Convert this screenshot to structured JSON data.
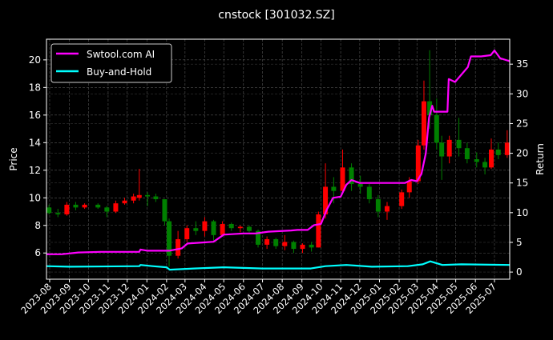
{
  "chart_data": {
    "type": "line",
    "title": "cnstock [301032.SZ]",
    "ylabel": "Price",
    "y2label": "Return",
    "ylim": [
      4.1,
      21.5
    ],
    "y2lim": [
      -1.2,
      39.2
    ],
    "xlim": [
      "2023-07-27",
      "2025-07-25"
    ],
    "yticks": [
      6,
      8,
      10,
      12,
      14,
      16,
      18,
      20
    ],
    "y2ticks": [
      0,
      5,
      10,
      15,
      20,
      25,
      30,
      35
    ],
    "xticks": [
      "2023-08",
      "2023-09",
      "2023-10",
      "2023-11",
      "2023-12",
      "2024-01",
      "2024-02",
      "2024-03",
      "2024-04",
      "2024-05",
      "2024-06",
      "2024-07",
      "2024-08",
      "2024-09",
      "2024-10",
      "2024-11",
      "2024-12",
      "2025-01",
      "2025-02",
      "2025-03",
      "2025-04",
      "2025-05",
      "2025-06",
      "2025-07"
    ],
    "grid": true,
    "legend_position": "top-left",
    "colors": {
      "up": "#ff0000",
      "down": "#008000",
      "ai": "#ff00ff",
      "hold": "#00ffff"
    },
    "candles_columns": [
      "date",
      "open",
      "high",
      "low",
      "close"
    ],
    "candles": [
      [
        "2023-07-31",
        9.3,
        9.5,
        8.8,
        8.9
      ],
      [
        "2023-08-14",
        8.9,
        9.2,
        8.6,
        8.8
      ],
      [
        "2023-08-28",
        8.8,
        9.7,
        8.7,
        9.5
      ],
      [
        "2023-09-11",
        9.5,
        9.7,
        9.1,
        9.3
      ],
      [
        "2023-09-25",
        9.3,
        9.6,
        9.2,
        9.5
      ],
      [
        "2023-10-16",
        9.5,
        9.6,
        9.2,
        9.3
      ],
      [
        "2023-10-30",
        9.3,
        9.4,
        8.6,
        9.0
      ],
      [
        "2023-11-13",
        9.0,
        9.8,
        8.9,
        9.6
      ],
      [
        "2023-11-27",
        9.6,
        10.0,
        9.5,
        9.8
      ],
      [
        "2023-12-11",
        9.8,
        10.3,
        9.6,
        10.1
      ],
      [
        "2023-12-20",
        10.0,
        12.1,
        9.8,
        10.2
      ],
      [
        "2024-01-02",
        10.2,
        10.4,
        9.4,
        10.1
      ],
      [
        "2024-01-15",
        10.1,
        10.3,
        9.7,
        9.9
      ],
      [
        "2024-01-29",
        9.9,
        9.9,
        8.0,
        8.3
      ],
      [
        "2024-02-05",
        8.3,
        8.5,
        5.0,
        5.8
      ],
      [
        "2024-02-19",
        5.8,
        7.6,
        5.6,
        7.0
      ],
      [
        "2024-03-04",
        7.0,
        8.0,
        6.8,
        7.8
      ],
      [
        "2024-03-18",
        7.8,
        8.3,
        7.3,
        7.6
      ],
      [
        "2024-04-01",
        7.6,
        8.6,
        7.2,
        8.3
      ],
      [
        "2024-04-15",
        8.3,
        8.4,
        6.8,
        7.3
      ],
      [
        "2024-04-29",
        7.3,
        8.3,
        7.2,
        8.1
      ],
      [
        "2024-05-13",
        8.1,
        8.2,
        7.6,
        7.8
      ],
      [
        "2024-05-27",
        7.8,
        8.0,
        7.5,
        7.9
      ],
      [
        "2024-06-10",
        7.9,
        8.0,
        7.5,
        7.6
      ],
      [
        "2024-06-24",
        7.6,
        7.7,
        6.4,
        6.6
      ],
      [
        "2024-07-08",
        6.6,
        7.2,
        6.3,
        7.0
      ],
      [
        "2024-07-22",
        7.0,
        7.1,
        6.3,
        6.5
      ],
      [
        "2024-08-05",
        6.5,
        7.3,
        6.2,
        6.8
      ],
      [
        "2024-08-19",
        6.8,
        6.9,
        6.0,
        6.3
      ],
      [
        "2024-09-02",
        6.3,
        6.7,
        6.0,
        6.6
      ],
      [
        "2024-09-16",
        6.6,
        6.8,
        6.1,
        6.4
      ],
      [
        "2024-09-27",
        6.4,
        9.0,
        6.4,
        8.8
      ],
      [
        "2024-10-08",
        8.8,
        12.5,
        8.5,
        10.8
      ],
      [
        "2024-10-21",
        10.8,
        11.5,
        9.6,
        10.5
      ],
      [
        "2024-11-04",
        10.5,
        13.5,
        10.4,
        12.2
      ],
      [
        "2024-11-18",
        12.2,
        12.5,
        10.5,
        11.0
      ],
      [
        "2024-12-02",
        11.0,
        11.6,
        10.3,
        10.8
      ],
      [
        "2024-12-16",
        10.8,
        11.0,
        9.6,
        9.9
      ],
      [
        "2024-12-30",
        9.9,
        10.2,
        8.6,
        9.0
      ],
      [
        "2025-01-13",
        9.0,
        9.7,
        8.4,
        9.4
      ],
      [
        "2025-02-05",
        9.4,
        10.6,
        9.2,
        10.4
      ],
      [
        "2025-02-17",
        10.4,
        11.5,
        10.0,
        11.2
      ],
      [
        "2025-03-03",
        11.2,
        14.2,
        11.0,
        13.8
      ],
      [
        "2025-03-12",
        13.8,
        18.5,
        13.5,
        17.0
      ],
      [
        "2025-03-21",
        17.0,
        20.7,
        15.0,
        16.0
      ],
      [
        "2025-04-01",
        16.0,
        17.2,
        13.5,
        14.0
      ],
      [
        "2025-04-09",
        14.0,
        14.5,
        11.3,
        13.0
      ],
      [
        "2025-04-21",
        13.0,
        14.5,
        12.5,
        14.2
      ],
      [
        "2025-05-06",
        14.2,
        15.8,
        13.0,
        13.6
      ],
      [
        "2025-05-19",
        13.6,
        14.0,
        12.5,
        12.8
      ],
      [
        "2025-06-03",
        12.8,
        13.3,
        12.2,
        12.6
      ],
      [
        "2025-06-16",
        12.6,
        12.9,
        11.7,
        12.2
      ],
      [
        "2025-06-26",
        12.2,
        14.3,
        12.1,
        13.5
      ],
      [
        "2025-07-07",
        13.5,
        14.0,
        12.8,
        13.1
      ],
      [
        "2025-07-21",
        13.1,
        14.9,
        12.9,
        14.0
      ]
    ],
    "series": [
      {
        "name": "Swtool.com AI",
        "axis": "right",
        "points": [
          [
            "2023-07-27",
            3.0
          ],
          [
            "2023-08-20",
            3.0
          ],
          [
            "2023-09-15",
            3.3
          ],
          [
            "2023-10-20",
            3.4
          ],
          [
            "2023-12-20",
            3.4
          ],
          [
            "2023-12-22",
            3.8
          ],
          [
            "2024-01-02",
            3.6
          ],
          [
            "2024-02-05",
            3.6
          ],
          [
            "2024-02-25",
            4.0
          ],
          [
            "2024-03-05",
            4.8
          ],
          [
            "2024-03-31",
            5.0
          ],
          [
            "2024-04-15",
            5.1
          ],
          [
            "2024-05-01",
            6.3
          ],
          [
            "2024-06-01",
            6.5
          ],
          [
            "2024-06-20",
            6.5
          ],
          [
            "2024-07-10",
            6.8
          ],
          [
            "2024-08-15",
            7.0
          ],
          [
            "2024-08-25",
            7.1
          ],
          [
            "2024-09-10",
            7.1
          ],
          [
            "2024-09-20",
            7.9
          ],
          [
            "2024-10-01",
            8.1
          ],
          [
            "2024-10-10",
            10.5
          ],
          [
            "2024-10-20",
            12.5
          ],
          [
            "2024-11-01",
            12.7
          ],
          [
            "2024-11-10",
            14.7
          ],
          [
            "2024-11-18",
            15.5
          ],
          [
            "2024-12-01",
            15.0
          ],
          [
            "2025-01-10",
            15.0
          ],
          [
            "2025-02-10",
            15.0
          ],
          [
            "2025-02-20",
            15.5
          ],
          [
            "2025-03-01",
            15.3
          ],
          [
            "2025-03-08",
            16.5
          ],
          [
            "2025-03-15",
            20.0
          ],
          [
            "2025-03-20",
            26.0
          ],
          [
            "2025-03-25",
            28.0
          ],
          [
            "2025-03-28",
            27.0
          ],
          [
            "2025-04-18",
            27.0
          ],
          [
            "2025-04-20",
            32.5
          ],
          [
            "2025-04-30",
            32.0
          ],
          [
            "2025-05-20",
            34.5
          ],
          [
            "2025-05-25",
            36.3
          ],
          [
            "2025-06-10",
            36.3
          ],
          [
            "2025-06-25",
            36.5
          ],
          [
            "2025-07-01",
            37.3
          ],
          [
            "2025-07-10",
            36.0
          ],
          [
            "2025-07-25",
            35.5
          ]
        ]
      },
      {
        "name": "Buy-and-Hold",
        "axis": "right",
        "points": [
          [
            "2023-07-27",
            1.0
          ],
          [
            "2023-09-01",
            0.9
          ],
          [
            "2023-12-20",
            1.0
          ],
          [
            "2023-12-22",
            1.2
          ],
          [
            "2024-01-10",
            1.0
          ],
          [
            "2024-02-01",
            0.8
          ],
          [
            "2024-02-06",
            0.4
          ],
          [
            "2024-03-15",
            0.6
          ],
          [
            "2024-05-01",
            0.8
          ],
          [
            "2024-07-01",
            0.6
          ],
          [
            "2024-09-15",
            0.6
          ],
          [
            "2024-10-08",
            1.0
          ],
          [
            "2024-11-10",
            1.2
          ],
          [
            "2024-12-20",
            0.9
          ],
          [
            "2025-02-15",
            1.0
          ],
          [
            "2025-03-10",
            1.3
          ],
          [
            "2025-03-22",
            1.8
          ],
          [
            "2025-04-10",
            1.2
          ],
          [
            "2025-05-10",
            1.3
          ],
          [
            "2025-07-25",
            1.2
          ]
        ]
      }
    ]
  }
}
